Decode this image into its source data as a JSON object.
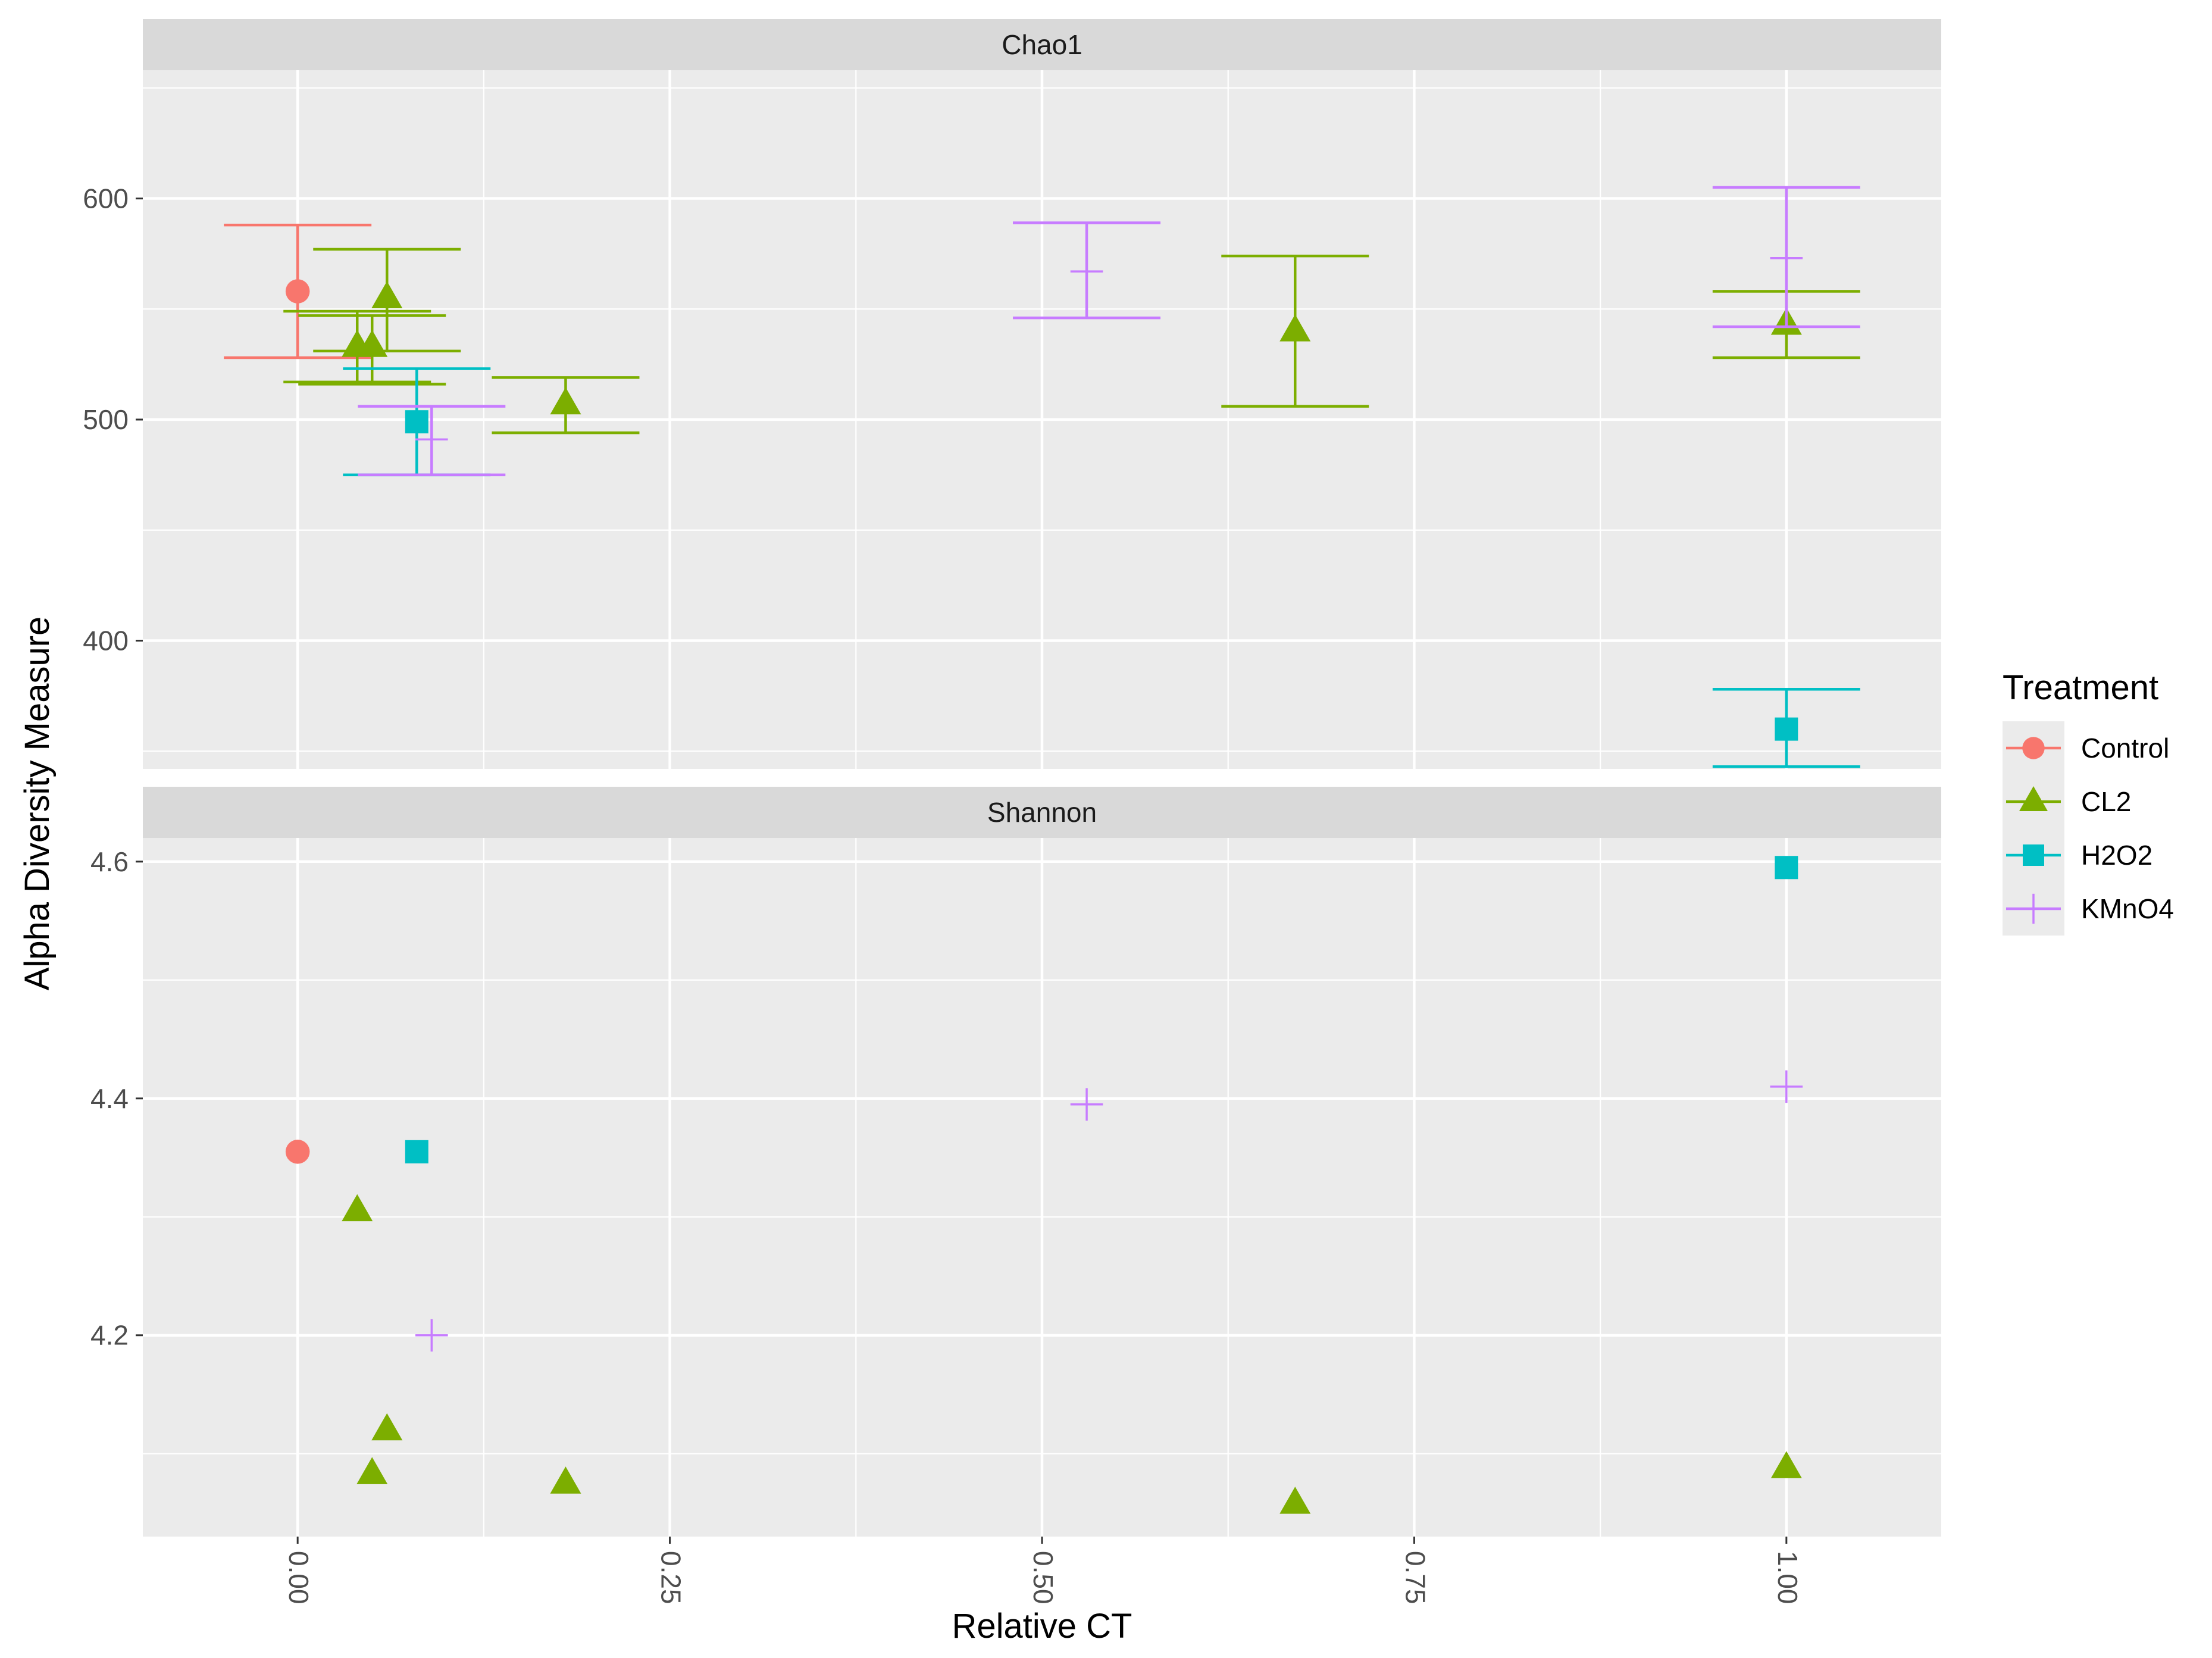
{
  "chart_data": {
    "type": "scatter",
    "xlabel": "Relative CT",
    "ylabel": "Alpha Diversity Measure",
    "x_ticks": [
      {
        "value": 0.0,
        "label": "0.00"
      },
      {
        "value": 0.25,
        "label": "0.25"
      },
      {
        "value": 0.5,
        "label": "0.50"
      },
      {
        "value": 0.75,
        "label": "0.75"
      },
      {
        "value": 1.0,
        "label": "1.00"
      }
    ],
    "xlim": [
      -0.104,
      1.104
    ],
    "legend": {
      "title": "Treatment",
      "entries": [
        {
          "name": "Control",
          "color": "#F8766D",
          "shape": "circle"
        },
        {
          "name": "CL2",
          "color": "#7CAE00",
          "shape": "triangle"
        },
        {
          "name": "H2O2",
          "color": "#00BFC4",
          "shape": "square"
        },
        {
          "name": "KMnO4",
          "color": "#C77CFF",
          "shape": "plus"
        }
      ]
    },
    "panels": [
      {
        "strip": "Chao1",
        "ylim": [
          342,
          658
        ],
        "y_ticks": [
          {
            "value": 400,
            "label": "400"
          },
          {
            "value": 500,
            "label": "500"
          },
          {
            "value": 600,
            "label": "600"
          }
        ],
        "y_minor": [
          350,
          450,
          550,
          650
        ],
        "points": [
          {
            "group": "Control",
            "x": 0.0,
            "y": 558,
            "ymin": 528,
            "ymax": 588
          },
          {
            "group": "CL2",
            "x": 0.04,
            "y": 533,
            "ymin": 517,
            "ymax": 549
          },
          {
            "group": "CL2",
            "x": 0.05,
            "y": 533,
            "ymin": 516,
            "ymax": 547
          },
          {
            "group": "CL2",
            "x": 0.06,
            "y": 555,
            "ymin": 531,
            "ymax": 577
          },
          {
            "group": "CL2",
            "x": 0.18,
            "y": 507,
            "ymin": 494,
            "ymax": 519
          },
          {
            "group": "CL2",
            "x": 0.67,
            "y": 540,
            "ymin": 506,
            "ymax": 574
          },
          {
            "group": "CL2",
            "x": 1.0,
            "y": 543,
            "ymin": 528,
            "ymax": 558
          },
          {
            "group": "H2O2",
            "x": 0.08,
            "y": 499,
            "ymin": 475,
            "ymax": 523
          },
          {
            "group": "H2O2",
            "x": 1.0,
            "y": 360,
            "ymin": 343,
            "ymax": 378
          },
          {
            "group": "KMnO4",
            "x": 0.09,
            "y": 491,
            "ymin": 475,
            "ymax": 506
          },
          {
            "group": "KMnO4",
            "x": 0.53,
            "y": 567,
            "ymin": 546,
            "ymax": 589
          },
          {
            "group": "KMnO4",
            "x": 1.0,
            "y": 573,
            "ymin": 542,
            "ymax": 605
          }
        ]
      },
      {
        "strip": "Shannon",
        "ylim": [
          4.03,
          4.62
        ],
        "y_ticks": [
          {
            "value": 4.2,
            "label": "4.2"
          },
          {
            "value": 4.4,
            "label": "4.4"
          },
          {
            "value": 4.6,
            "label": "4.6"
          }
        ],
        "y_minor": [
          4.1,
          4.3,
          4.5
        ],
        "points": [
          {
            "group": "Control",
            "x": 0.0,
            "y": 4.355
          },
          {
            "group": "CL2",
            "x": 0.04,
            "y": 4.305
          },
          {
            "group": "CL2",
            "x": 0.05,
            "y": 4.083
          },
          {
            "group": "CL2",
            "x": 0.06,
            "y": 4.12
          },
          {
            "group": "CL2",
            "x": 0.18,
            "y": 4.075
          },
          {
            "group": "CL2",
            "x": 0.67,
            "y": 4.058
          },
          {
            "group": "CL2",
            "x": 1.0,
            "y": 4.088
          },
          {
            "group": "H2O2",
            "x": 0.08,
            "y": 4.355
          },
          {
            "group": "H2O2",
            "x": 1.0,
            "y": 4.595
          },
          {
            "group": "KMnO4",
            "x": 0.09,
            "y": 4.2
          },
          {
            "group": "KMnO4",
            "x": 0.53,
            "y": 4.395
          },
          {
            "group": "KMnO4",
            "x": 1.0,
            "y": 4.41
          }
        ]
      }
    ]
  }
}
